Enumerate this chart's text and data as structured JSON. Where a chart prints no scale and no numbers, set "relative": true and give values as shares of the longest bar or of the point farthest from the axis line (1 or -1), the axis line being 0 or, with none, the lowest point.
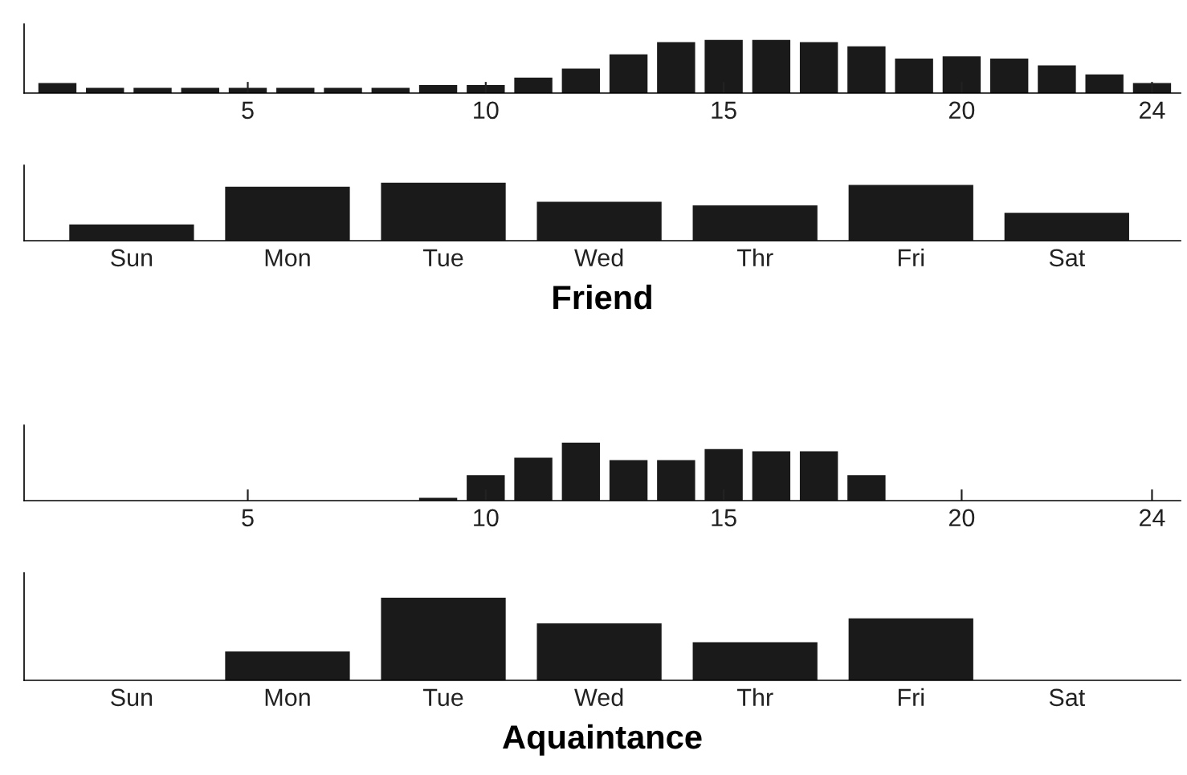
{
  "chart_data": [
    {
      "type": "bar",
      "relative": true,
      "x": [
        1,
        2,
        3,
        4,
        5,
        6,
        7,
        8,
        9,
        10,
        11,
        12,
        13,
        14,
        15,
        16,
        17,
        18,
        19,
        20,
        21,
        22,
        23,
        24
      ],
      "xlim": [
        0.3,
        24.6
      ],
      "xticks": [
        5,
        10,
        15,
        20,
        24
      ],
      "tick_labels": "x",
      "series": [
        {
          "color": "#1a1a1a",
          "values": [
            0.19,
            0.1,
            0.1,
            0.1,
            0.1,
            0.1,
            0.1,
            0.1,
            0.15,
            0.15,
            0.29,
            0.46,
            0.73,
            0.96,
            1,
            1,
            0.96,
            0.88,
            0.65,
            0.69,
            0.65,
            0.52,
            0.35,
            0.19
          ]
        }
      ]
    },
    {
      "type": "bar",
      "relative": true,
      "categories": [
        "Sun",
        "Mon",
        "Tue",
        "Wed",
        "Thr",
        "Fri",
        "Sat"
      ],
      "xlabel": "Friend",
      "tick_labels": "x",
      "series": [
        {
          "color": "#1a1a1a",
          "values": [
            0.28,
            0.93,
            1,
            0.67,
            0.61,
            0.96,
            0.48
          ]
        }
      ]
    },
    {
      "type": "bar",
      "relative": true,
      "x": [
        1,
        2,
        3,
        4,
        5,
        6,
        7,
        8,
        9,
        10,
        11,
        12,
        13,
        14,
        15,
        16,
        17,
        18,
        19,
        20,
        21,
        22,
        23,
        24
      ],
      "xlim": [
        0.3,
        24.6
      ],
      "xticks": [
        5,
        10,
        15,
        20,
        24
      ],
      "tick_labels": "x",
      "series": [
        {
          "color": "#1a1a1a",
          "values": [
            0,
            0,
            0,
            0,
            0,
            0,
            0,
            0,
            0.05,
            0.44,
            0.74,
            1,
            0.7,
            0.7,
            0.89,
            0.85,
            0.85,
            0.44,
            0,
            0,
            0,
            0,
            0,
            0
          ]
        }
      ]
    },
    {
      "type": "bar",
      "relative": true,
      "categories": [
        "Sun",
        "Mon",
        "Tue",
        "Wed",
        "Thr",
        "Fri",
        "Sat"
      ],
      "xlabel": "Aquaintance",
      "tick_labels": "x",
      "series": [
        {
          "color": "#1a1a1a",
          "values": [
            0,
            0.35,
            1,
            0.69,
            0.46,
            0.75,
            0
          ]
        }
      ]
    }
  ]
}
